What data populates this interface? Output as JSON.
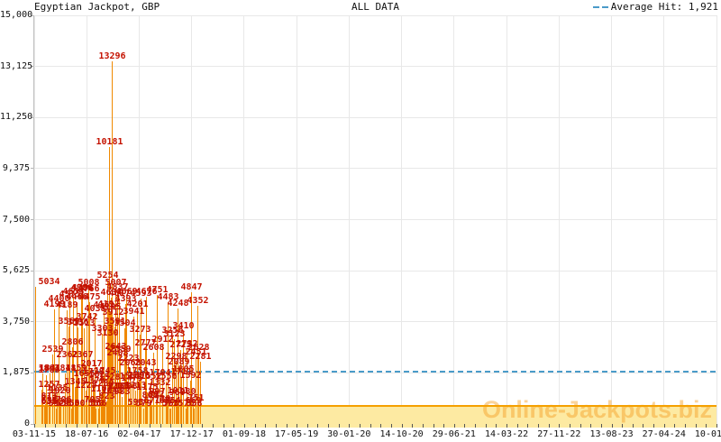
{
  "header": {
    "title": "Egyptian Jackpot, GBP",
    "range_label": "ALL DATA",
    "legend_label": "Average Hit: 1,921"
  },
  "watermark": "Online-Jackpots.biz",
  "chart_data": {
    "type": "bar",
    "subtype": "jackpot-hit-spikes",
    "title": "Egyptian Jackpot, GBP",
    "currency": "GBP",
    "ylim": [
      0,
      15000
    ],
    "y_tick_values": [
      15000,
      13125,
      11250,
      9375,
      7500,
      5625,
      3750,
      1875,
      0
    ],
    "y_tick_labels": [
      "15,000",
      "13,125",
      "11,250",
      "9,375",
      "7,500",
      "5,625",
      "3,750",
      "1,875",
      "0"
    ],
    "x_tick_labels": [
      "03-11-15",
      "18-07-16",
      "02-04-17",
      "17-12-17",
      "01-09-18",
      "17-05-19",
      "30-01-20",
      "14-10-20",
      "29-06-21",
      "14-03-22",
      "27-11-22",
      "13-08-23",
      "27-04-24",
      "10-01-25"
    ],
    "minor_ticks_per_interval": 5,
    "grid": true,
    "legend_position": "top-right",
    "average_hit": {
      "value": 1921,
      "color": "#4a9bc9"
    },
    "hits_period": {
      "from": "03-11-15",
      "to": "17-12-17"
    },
    "notable_hits": [
      {
        "x_frac": 0.001,
        "value": 5034
      },
      {
        "x_frac": 0.062,
        "value": 4466
      },
      {
        "x_frac": 0.07,
        "value": 4786
      },
      {
        "x_frac": 0.079,
        "value": 5008
      },
      {
        "x_frac": 0.0885,
        "value": 4038
      },
      {
        "x_frac": 0.1017,
        "value": 4161
      },
      {
        "x_frac": 0.107,
        "value": 5254
      },
      {
        "x_frac": 0.109,
        "value": 10181
      },
      {
        "x_frac": 0.111,
        "value": 4105
      },
      {
        "x_frac": 0.113,
        "value": 13296
      },
      {
        "x_frac": 0.119,
        "value": 5007
      },
      {
        "x_frac": 0.1215,
        "value": 4837
      },
      {
        "x_frac": 0.124,
        "value": 4617
      },
      {
        "x_frac": 0.1334,
        "value": 4393
      },
      {
        "x_frac": 0.1506,
        "value": 4201
      },
      {
        "x_frac": 0.1955,
        "value": 4483
      },
      {
        "x_frac": 0.21,
        "value": 4248
      }
    ],
    "dense_hits": {
      "count": 130,
      "x_frac_start": 0.008,
      "x_frac_end": 0.243,
      "value_min": 550,
      "value_max": 4850,
      "note": "hundreds of overlapping labelled hits between 03-11-15 and 17-12-17; individual labels unreadable in source"
    },
    "baseline_band": {
      "value": 660,
      "fill": "#fdeaa2",
      "border_color": "#f5a000"
    },
    "colors": {
      "spike": "#f08900",
      "value_label": "#c41200",
      "grid": "#e8e8e8",
      "axis": "#c0c0c0",
      "tick": "#555555",
      "watermark": "rgba(243,157,33,0.45)",
      "text": "#111111"
    }
  }
}
